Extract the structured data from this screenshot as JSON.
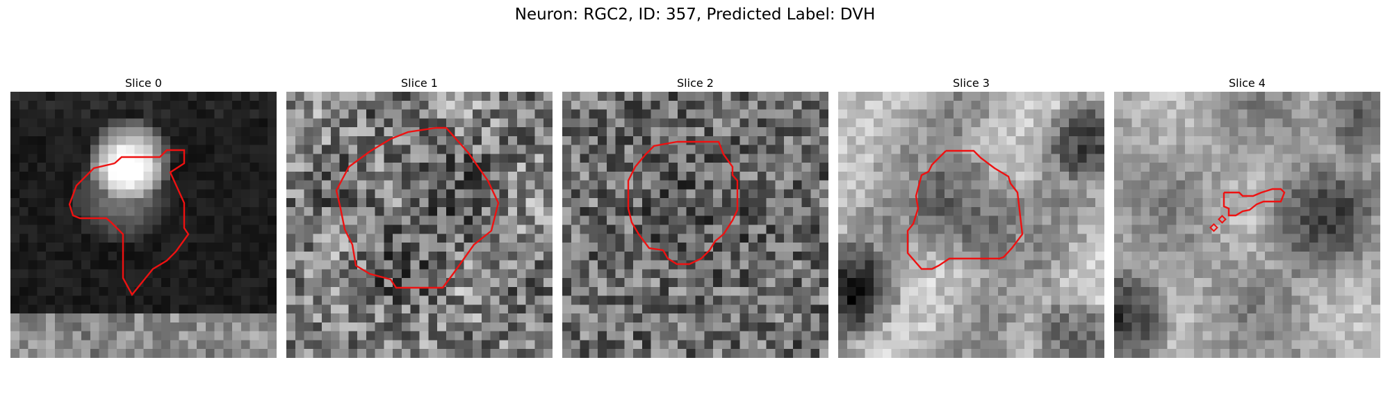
{
  "figure": {
    "title": "Neuron: RGC2, ID: 357, Predicted Label: DVH"
  },
  "contour_color": "#ee1111",
  "panels": [
    {
      "title": "Slice 0",
      "content": "mostly dark field with bright blob upper-center; contour around blob extending down to bottom"
    },
    {
      "title": "Slice 1",
      "content": "mid-gray noisy texture; large rounded contour"
    },
    {
      "title": "Slice 2",
      "content": "mid-gray noisy texture; octagonal contour"
    },
    {
      "title": "Slice 3",
      "content": "light texture with darker cell body; rounded contour"
    },
    {
      "title": "Slice 4",
      "content": "light texture; small elongated contour with two tiny squares"
    }
  ]
}
